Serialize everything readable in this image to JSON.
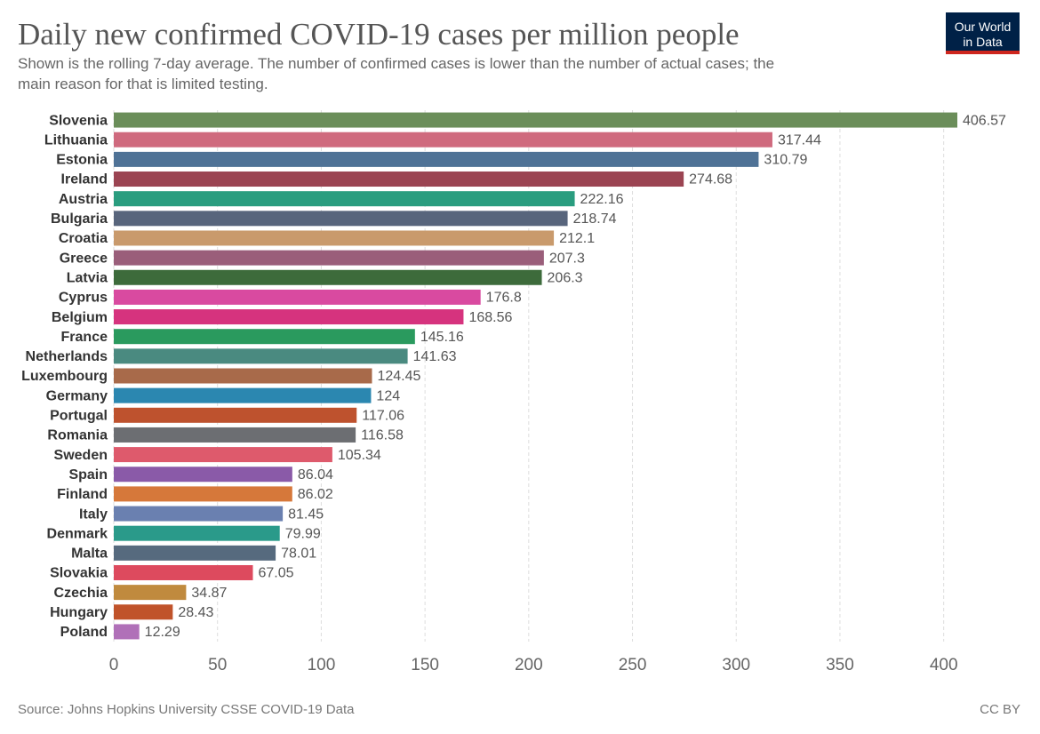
{
  "chart_data": {
    "type": "bar",
    "orientation": "horizontal",
    "title": "Daily new confirmed COVID-19 cases per million people",
    "subtitle": [
      "Shown is the rolling 7-day average. The number of confirmed cases is lower than the number of actual cases; the",
      "main reason for that is limited testing."
    ],
    "logo": [
      "Our World",
      "in Data"
    ],
    "source": "Source: Johns Hopkins University CSSE COVID-19 Data",
    "license": "CC BY",
    "categories": [
      "Slovenia",
      "Lithuania",
      "Estonia",
      "Ireland",
      "Austria",
      "Bulgaria",
      "Croatia",
      "Greece",
      "Latvia",
      "Cyprus",
      "Belgium",
      "France",
      "Netherlands",
      "Luxembourg",
      "Germany",
      "Portugal",
      "Romania",
      "Sweden",
      "Spain",
      "Finland",
      "Italy",
      "Denmark",
      "Malta",
      "Slovakia",
      "Czechia",
      "Hungary",
      "Poland"
    ],
    "values": [
      406.57,
      317.44,
      310.79,
      274.68,
      222.16,
      218.74,
      212.1,
      207.3,
      206.3,
      176.8,
      168.56,
      145.16,
      141.63,
      124.45,
      124,
      117.06,
      116.58,
      105.34,
      86.04,
      86.02,
      81.45,
      79.99,
      78.01,
      67.05,
      34.87,
      28.43,
      12.29
    ],
    "colors": [
      "#6b8e5a",
      "#cf6a7e",
      "#4f7296",
      "#9b4452",
      "#2a9d7f",
      "#58657c",
      "#c99a6c",
      "#9a5e7a",
      "#3d6b3b",
      "#d94aa0",
      "#d6337e",
      "#2a9a5e",
      "#4a8a80",
      "#a86a4a",
      "#2b87b0",
      "#be522e",
      "#6c6e72",
      "#de5a6c",
      "#8a5aa8",
      "#d6783a",
      "#6a80b0",
      "#2a9a8a",
      "#566a7e",
      "#dd4a5e",
      "#c08a3e",
      "#c0532a",
      "#b070b8"
    ],
    "xlim": [
      0,
      406.57
    ],
    "xticks": [
      0,
      50,
      100,
      150,
      200,
      250,
      300,
      350,
      400
    ],
    "grid": true
  }
}
